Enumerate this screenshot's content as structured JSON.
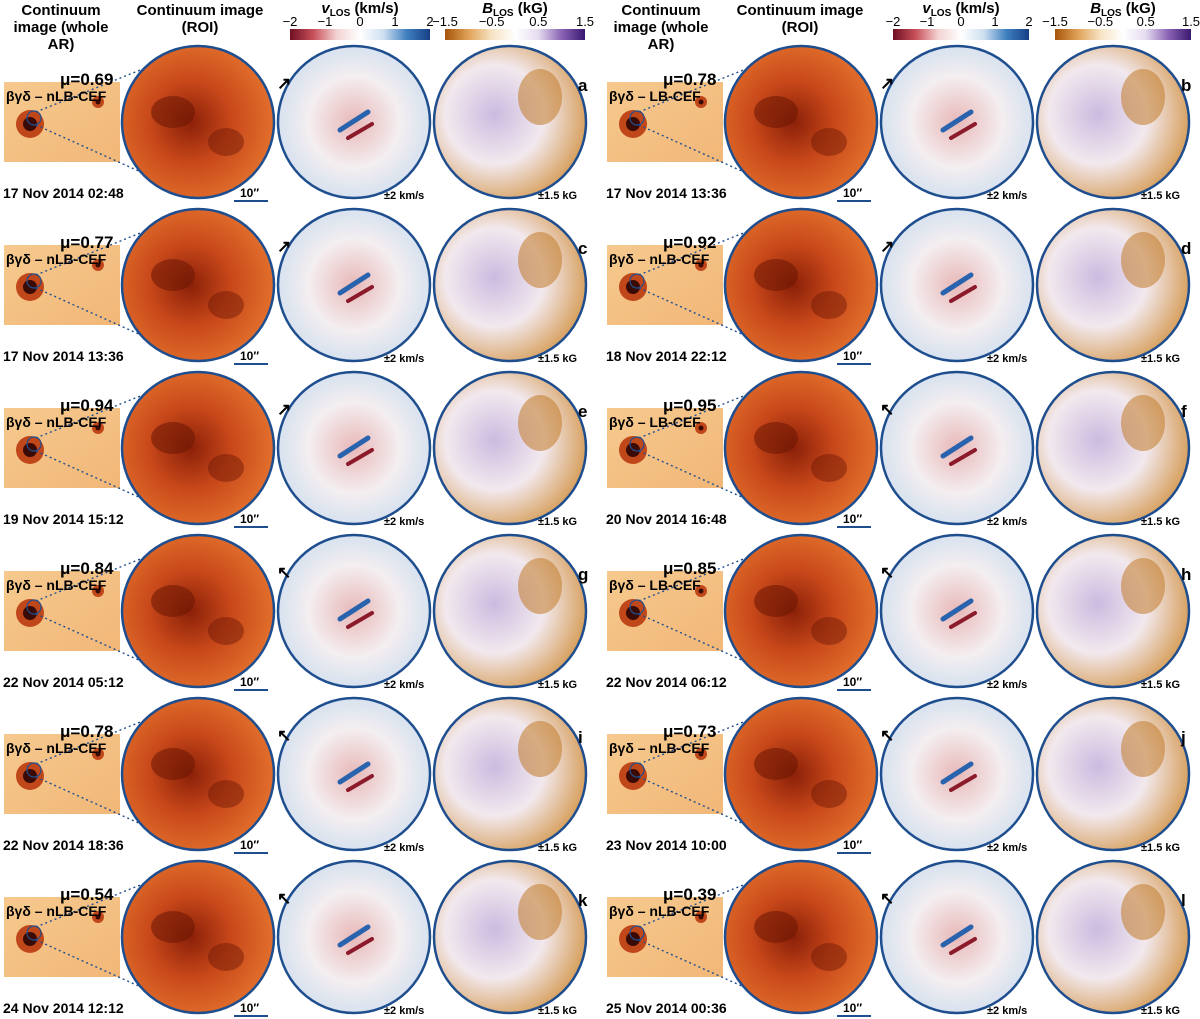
{
  "headers": {
    "whole_ar": "Continuum image (whole AR)",
    "roi": "Continuum image (ROI)",
    "vlos_title": "(km/s)",
    "vlos_symbol": "v",
    "vlos_sub": "LOS",
    "blos_title": "(kG)",
    "blos_symbol": "B",
    "blos_sub": "LOS",
    "vlos_ticks": [
      "−2",
      "−1",
      "0",
      "1",
      "2"
    ],
    "blos_ticks": [
      "−1.5",
      "−0.5",
      "0.5",
      "1.5"
    ]
  },
  "panel_labels": {
    "scale": "10′′",
    "vrange": "±2 km/s",
    "brange": "±1.5 kG"
  },
  "colors": {
    "frame": "#1f4e8f",
    "v_neg": "#8b1a2b",
    "v_pos": "#1f5fa8",
    "b_neg": "#b5670f",
    "b_pos": "#3f1d7a",
    "continuum": "#d2541a"
  },
  "panels": [
    {
      "letter": "a",
      "mu": "μ=0.69",
      "cls": "βγδ – nLB-CEF",
      "date": "17 Nov 2014 02:48",
      "arrow": "↗"
    },
    {
      "letter": "b",
      "mu": "μ=0.78",
      "cls": "βγδ – LB-CEF",
      "date": "17 Nov 2014 13:36",
      "arrow": "↗"
    },
    {
      "letter": "c",
      "mu": "μ=0.77",
      "cls": "βγδ – nLB-CEF",
      "date": "17 Nov 2014 13:36",
      "arrow": "↗"
    },
    {
      "letter": "d",
      "mu": "μ=0.92",
      "cls": "βγδ – nLB-CEF",
      "date": "18 Nov 2014 22:12",
      "arrow": "↗"
    },
    {
      "letter": "e",
      "mu": "μ=0.94",
      "cls": "βγδ – nLB-CEF",
      "date": "19 Nov 2014 15:12",
      "arrow": "↗"
    },
    {
      "letter": "f",
      "mu": "μ=0.95",
      "cls": "βγδ – LB-CEF",
      "date": "20 Nov 2014 16:48",
      "arrow": "↖"
    },
    {
      "letter": "g",
      "mu": "μ=0.84",
      "cls": "βγδ – nLB-CEF",
      "date": "22 Nov 2014 05:12",
      "arrow": "↖"
    },
    {
      "letter": "h",
      "mu": "μ=0.85",
      "cls": "βγδ – LB-CEF",
      "date": "22 Nov 2014 06:12",
      "arrow": "↖"
    },
    {
      "letter": "i",
      "mu": "μ=0.78",
      "cls": "βγδ – nLB-CEF",
      "date": "22 Nov 2014 18:36",
      "arrow": "↖"
    },
    {
      "letter": "j",
      "mu": "μ=0.73",
      "cls": "βγδ – nLB-CEF",
      "date": "23 Nov 2014 10:00",
      "arrow": "↖"
    },
    {
      "letter": "k",
      "mu": "μ=0.54",
      "cls": "βγδ – nLB-CEF",
      "date": "24 Nov 2014 12:12",
      "arrow": "↖"
    },
    {
      "letter": "l",
      "mu": "μ=0.39",
      "cls": "βγδ – nLB-CEF",
      "date": "25 Nov 2014 00:36",
      "arrow": "↖"
    }
  ]
}
